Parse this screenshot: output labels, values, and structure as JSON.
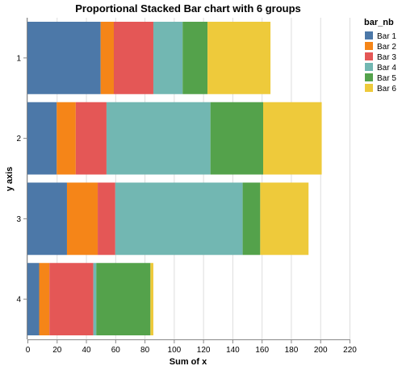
{
  "chart_data": {
    "type": "bar",
    "orientation": "horizontal",
    "stacked": true,
    "title": "Proportional Stacked Bar chart with 6 groups",
    "xlabel": "Sum of x",
    "ylabel": "y axis",
    "xlim": [
      0,
      220
    ],
    "xticks": [
      0,
      20,
      40,
      60,
      80,
      100,
      120,
      140,
      160,
      180,
      200,
      220
    ],
    "categories": [
      "1",
      "2",
      "3",
      "4"
    ],
    "grid": true,
    "legend": {
      "title": "bar_nb",
      "position": "top-right"
    },
    "series": [
      {
        "name": "Bar 1",
        "color": "#4c78a8",
        "values": [
          50,
          20,
          27,
          8
        ]
      },
      {
        "name": "Bar 2",
        "color": "#f58518",
        "values": [
          9,
          13,
          21,
          7
        ]
      },
      {
        "name": "Bar 3",
        "color": "#e45756",
        "values": [
          27,
          21,
          12,
          30
        ]
      },
      {
        "name": "Bar 4",
        "color": "#72b7b2",
        "values": [
          20,
          71,
          87,
          2
        ]
      },
      {
        "name": "Bar 5",
        "color": "#54a24b",
        "values": [
          17,
          36,
          12,
          37
        ]
      },
      {
        "name": "Bar 6",
        "color": "#eeca3b",
        "values": [
          43,
          40,
          33,
          2
        ]
      }
    ]
  }
}
